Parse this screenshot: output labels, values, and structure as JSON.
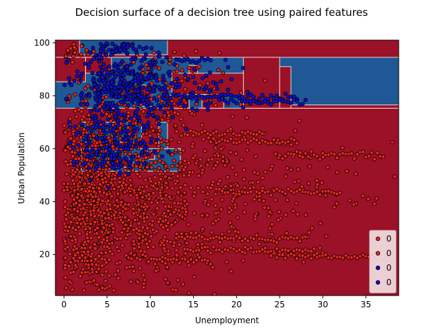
{
  "chart_data": {
    "type": "scatter",
    "title": "Decision surface of a decision tree using paired features",
    "xlabel": "Unemployment",
    "ylabel": "Urban Population",
    "xlim": [
      -1,
      38.8
    ],
    "ylim": [
      4.5,
      101
    ],
    "xticks": [
      0,
      5,
      10,
      15,
      20,
      25,
      30,
      35
    ],
    "yticks": [
      20,
      40,
      60,
      80,
      100
    ],
    "grid": false,
    "legend_position": "lower right",
    "colors": {
      "class_red_region": "#9b1127",
      "class_blue_region": "#1f5894",
      "red_point": "#e8261e",
      "blue_point": "#1010d2",
      "point_edge": "#000000",
      "region_boundary": "#ffffff"
    },
    "decision_regions": [
      {
        "class": "blue",
        "x": [
          -1,
          38.8
        ],
        "y": [
          75.3,
          94.5
        ]
      },
      {
        "class": "blue",
        "x": [
          1.8,
          12
        ],
        "y": [
          95.5,
          101
        ]
      },
      {
        "class": "red",
        "x": [
          20.8,
          25
        ],
        "y": [
          75.3,
          94.5
        ]
      },
      {
        "class": "red",
        "x": [
          26.3,
          38.8
        ],
        "y": [
          75.3,
          76.5
        ]
      },
      {
        "class": "red",
        "x": [
          25,
          26.3
        ],
        "y": [
          75.3,
          91
        ]
      },
      {
        "class": "red",
        "x": [
          -1,
          2.5
        ],
        "y": [
          85.3,
          94.5
        ]
      },
      {
        "class": "red",
        "x": [
          2.5,
          5.5
        ],
        "y": [
          88.5,
          94.5
        ]
      },
      {
        "class": "red",
        "x": [
          12.5,
          20.8
        ],
        "y": [
          80.5,
          88.5
        ]
      },
      {
        "class": "red",
        "x": [
          8.8,
          10.2
        ],
        "y": [
          76,
          84
        ]
      },
      {
        "class": "red",
        "x": [
          11.8,
          14.5
        ],
        "y": [
          75.3,
          80.2
        ]
      },
      {
        "class": "red",
        "x": [
          16,
          18.5
        ],
        "y": [
          75.3,
          79.5
        ]
      },
      {
        "class": "red",
        "x": [
          14.5,
          15.5
        ],
        "y": [
          88.5,
          91.5
        ]
      },
      {
        "class": "blue",
        "x": [
          2,
          13.5
        ],
        "y": [
          51.5,
          60
        ]
      },
      {
        "class": "blue",
        "x": [
          2,
          9
        ],
        "y": [
          62.5,
          70
        ]
      },
      {
        "class": "blue",
        "x": [
          11,
          12
        ],
        "y": [
          60,
          70
        ]
      },
      {
        "class": "red",
        "x": [
          5.5,
          8
        ],
        "y": [
          53,
          56
        ]
      },
      {
        "class": "red",
        "x": [
          9,
          10.5
        ],
        "y": [
          56,
          59
        ]
      }
    ],
    "series": [
      {
        "name": "0",
        "class": "red",
        "clusters": [
          {
            "cx": 3,
            "cy": 40,
            "sx": 2,
            "sy": 18,
            "n": 650
          },
          {
            "cx": 8,
            "cy": 38,
            "sx": 3.5,
            "sy": 15,
            "n": 420
          },
          {
            "cx": 13,
            "cy": 40,
            "sx": 4,
            "sy": 14,
            "n": 220
          },
          {
            "cx": 19,
            "cy": 45,
            "sx": 5,
            "sy": 14,
            "n": 130
          },
          {
            "cx": 27,
            "cy": 45,
            "sx": 6,
            "sy": 12,
            "n": 70
          },
          {
            "cx": 10,
            "cy": 80,
            "sx": 4,
            "sy": 8,
            "n": 180
          },
          {
            "cx": 6,
            "cy": 65,
            "sx": 3,
            "sy": 7,
            "n": 170
          },
          {
            "cx": 3,
            "cy": 97,
            "sx": 2,
            "sy": 2,
            "n": 30
          }
        ],
        "bands": [
          {
            "y": 18.5,
            "x0": 7.5,
            "x1": 17
          },
          {
            "y": 22,
            "x0": 14,
            "x1": 30
          },
          {
            "y": 19.5,
            "x0": 24,
            "x1": 36
          },
          {
            "y": 26.5,
            "x0": 13,
            "x1": 28
          },
          {
            "y": 44,
            "x0": 18,
            "x1": 32
          },
          {
            "y": 58,
            "x0": 25,
            "x1": 37
          },
          {
            "y": 63,
            "x0": 17,
            "x1": 27
          },
          {
            "y": 66,
            "x0": 14,
            "x1": 23
          }
        ]
      },
      {
        "name": "0",
        "class": "blue",
        "clusters": [
          {
            "cx": 7,
            "cy": 82,
            "sx": 3,
            "sy": 7,
            "n": 420
          },
          {
            "cx": 6,
            "cy": 60,
            "sx": 2.5,
            "sy": 5,
            "n": 170
          },
          {
            "cx": 6,
            "cy": 98,
            "sx": 2,
            "sy": 1.5,
            "n": 50
          },
          {
            "cx": 15,
            "cy": 82,
            "sx": 3,
            "sy": 5,
            "n": 60
          }
        ],
        "bands": [
          {
            "y": 80,
            "x0": 12,
            "x1": 27
          },
          {
            "y": 93.5,
            "x0": 13,
            "x1": 17
          },
          {
            "y": 78,
            "x0": 18,
            "x1": 28
          }
        ]
      }
    ],
    "legend": [
      {
        "label": "0",
        "color": "#e8261e"
      },
      {
        "label": "0",
        "color": "#e8261e"
      },
      {
        "label": "0",
        "color": "#1010d2"
      },
      {
        "label": "0",
        "color": "#1010d2"
      }
    ]
  }
}
